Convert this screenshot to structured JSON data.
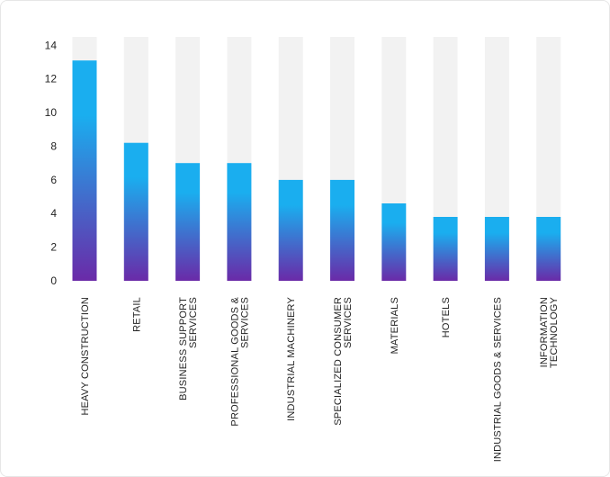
{
  "chart_data": {
    "type": "bar",
    "title": "",
    "xlabel": "",
    "ylabel": "",
    "ylim": [
      0,
      14.5
    ],
    "yticks": [
      "0",
      "2",
      "4",
      "6",
      "8",
      "10",
      "12",
      "14"
    ],
    "categories": [
      [
        "HEAVY CONSTRUCTION"
      ],
      [
        "RETAIL"
      ],
      [
        "BUSINESS SUPPORT",
        "SERVICES"
      ],
      [
        "PROFESSIONAL GOODS &",
        "SERVICES"
      ],
      [
        "INDUSTRIAL MACHINERY"
      ],
      [
        "SPECIALIZED CONSUMER",
        "SERVICES"
      ],
      [
        "MATERIALS"
      ],
      [
        "HOTELS"
      ],
      [
        "INDUSTRIAL GOODS & SERVICES"
      ],
      [
        "INFORMATION",
        "TECHNOLOGY"
      ]
    ],
    "values": [
      13.1,
      8.2,
      7.0,
      7.0,
      6.0,
      6.0,
      4.6,
      3.8,
      3.8,
      3.8
    ],
    "background_track": true,
    "grid": false,
    "colors": {
      "bar_top": "#1aaeef",
      "bar_bottom": "#6a2aa8",
      "track": "#f2f2f2",
      "text": "#222222"
    }
  }
}
